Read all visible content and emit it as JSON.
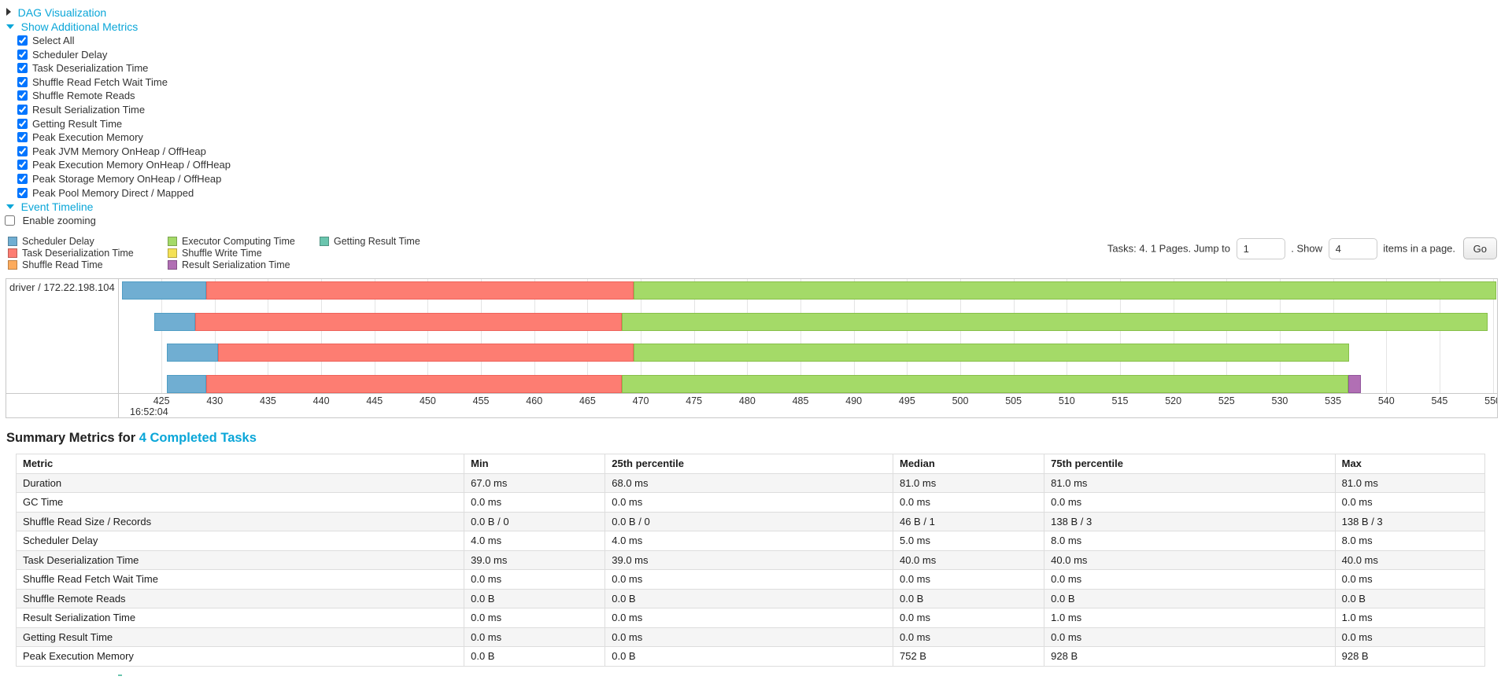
{
  "controls": {
    "dag_label": "DAG Visualization",
    "metrics_label": "Show Additional Metrics",
    "checkboxes": [
      {
        "label": "Select All",
        "checked": true
      },
      {
        "label": "Scheduler Delay",
        "checked": true
      },
      {
        "label": "Task Deserialization Time",
        "checked": true
      },
      {
        "label": "Shuffle Read Fetch Wait Time",
        "checked": true
      },
      {
        "label": "Shuffle Remote Reads",
        "checked": true
      },
      {
        "label": "Result Serialization Time",
        "checked": true
      },
      {
        "label": "Getting Result Time",
        "checked": true
      },
      {
        "label": "Peak Execution Memory",
        "checked": true
      },
      {
        "label": "Peak JVM Memory OnHeap / OffHeap",
        "checked": true
      },
      {
        "label": "Peak Execution Memory OnHeap / OffHeap",
        "checked": true
      },
      {
        "label": "Peak Storage Memory OnHeap / OffHeap",
        "checked": true
      },
      {
        "label": "Peak Pool Memory Direct / Mapped",
        "checked": true
      }
    ],
    "event_timeline_label": "Event Timeline",
    "enable_zooming": {
      "label": "Enable zooming",
      "checked": false
    }
  },
  "legend": {
    "columns": [
      [
        {
          "name": "scheduler-delay",
          "label": "Scheduler Delay",
          "color": "#70aed2"
        },
        {
          "name": "task-deserialization-time",
          "label": "Task Deserialization Time",
          "color": "#fd7d72"
        },
        {
          "name": "shuffle-read-time",
          "label": "Shuffle Read Time",
          "color": "#fdab5d"
        }
      ],
      [
        {
          "name": "executor-computing-time",
          "label": "Executor Computing Time",
          "color": "#a4da68"
        },
        {
          "name": "shuffle-write-time",
          "label": "Shuffle Write Time",
          "color": "#f4e156"
        },
        {
          "name": "result-serialization-time",
          "label": "Result Serialization Time",
          "color": "#b16fb4"
        }
      ],
      [
        {
          "name": "getting-result-time",
          "label": "Getting Result Time",
          "color": "#6ac5ae"
        }
      ]
    ]
  },
  "pagination": {
    "summary_text": "Tasks: 4. 1 Pages. Jump to",
    "jump_value": "1",
    "show_label": ". Show",
    "show_value": "4",
    "items_label": "items in a page.",
    "go_label": "Go"
  },
  "chart_data": {
    "type": "timeline-gantt",
    "title": "Event Timeline",
    "row_label": "driver / 172.22.198.104",
    "x_axis": {
      "unit": "ms within second",
      "time_of_day_label": "16:52:04",
      "time_label_at_tick": 425,
      "tick_start": 425,
      "tick_end": 550,
      "tick_step": 5,
      "domain": [
        421.0,
        550.4
      ],
      "grid": true
    },
    "colors": {
      "scheduler-delay": {
        "fill": "#70aed2",
        "edge": "#4f9dc4"
      },
      "task-deserialization": {
        "fill": "#fd7d72",
        "edge": "#ee625a"
      },
      "executor-computing": {
        "fill": "#a4da68",
        "edge": "#87bf49"
      },
      "result-serialization": {
        "fill": "#b16fb4",
        "edge": "#92549c"
      }
    },
    "tasks": [
      {
        "row": 1,
        "segments": [
          {
            "name": "scheduler-delay",
            "start": 421.3,
            "end": 429.2
          },
          {
            "name": "task-deserialization",
            "start": 429.2,
            "end": 469.3
          },
          {
            "name": "executor-computing",
            "start": 469.3,
            "end": 550.3
          }
        ]
      },
      {
        "row": 2,
        "segments": [
          {
            "name": "scheduler-delay",
            "start": 424.3,
            "end": 428.2
          },
          {
            "name": "task-deserialization",
            "start": 428.2,
            "end": 468.2
          },
          {
            "name": "executor-computing",
            "start": 468.2,
            "end": 549.5
          }
        ]
      },
      {
        "row": 3,
        "segments": [
          {
            "name": "scheduler-delay",
            "start": 425.5,
            "end": 430.3
          },
          {
            "name": "task-deserialization",
            "start": 430.3,
            "end": 469.3
          },
          {
            "name": "executor-computing",
            "start": 469.3,
            "end": 536.5
          }
        ]
      },
      {
        "row": 4,
        "segments": [
          {
            "name": "scheduler-delay",
            "start": 425.5,
            "end": 429.2
          },
          {
            "name": "task-deserialization",
            "start": 429.2,
            "end": 468.2
          },
          {
            "name": "executor-computing",
            "start": 468.2,
            "end": 536.4
          },
          {
            "name": "result-serialization",
            "start": 536.4,
            "end": 537.6
          }
        ]
      }
    ]
  },
  "summary": {
    "title_prefix": "Summary Metrics for ",
    "title_link": "4 Completed Tasks",
    "table": {
      "headers": [
        "Metric",
        "Min",
        "25th percentile",
        "Median",
        "75th percentile",
        "Max"
      ],
      "rows": [
        {
          "metric": "Duration",
          "values": [
            "67.0 ms",
            "68.0 ms",
            "81.0 ms",
            "81.0 ms",
            "81.0 ms"
          ]
        },
        {
          "metric": "GC Time",
          "values": [
            "0.0 ms",
            "0.0 ms",
            "0.0 ms",
            "0.0 ms",
            "0.0 ms"
          ]
        },
        {
          "metric": "Shuffle Read Size / Records",
          "values": [
            "0.0 B / 0",
            "0.0 B / 0",
            "46 B / 1",
            "138 B / 3",
            "138 B / 3"
          ]
        },
        {
          "metric": "Scheduler Delay",
          "values": [
            "4.0 ms",
            "4.0 ms",
            "5.0 ms",
            "8.0 ms",
            "8.0 ms"
          ]
        },
        {
          "metric": "Task Deserialization Time",
          "values": [
            "39.0 ms",
            "39.0 ms",
            "40.0 ms",
            "40.0 ms",
            "40.0 ms"
          ]
        },
        {
          "metric": "Shuffle Read Fetch Wait Time",
          "values": [
            "0.0 ms",
            "0.0 ms",
            "0.0 ms",
            "0.0 ms",
            "0.0 ms"
          ]
        },
        {
          "metric": "Shuffle Remote Reads",
          "values": [
            "0.0 B",
            "0.0 B",
            "0.0 B",
            "0.0 B",
            "0.0 B"
          ]
        },
        {
          "metric": "Result Serialization Time",
          "values": [
            "0.0 ms",
            "0.0 ms",
            "0.0 ms",
            "1.0 ms",
            "1.0 ms"
          ]
        },
        {
          "metric": "Getting Result Time",
          "values": [
            "0.0 ms",
            "0.0 ms",
            "0.0 ms",
            "0.0 ms",
            "0.0 ms"
          ]
        },
        {
          "metric": "Peak Execution Memory",
          "values": [
            "0.0 B",
            "0.0 B",
            "752 B",
            "928 B",
            "928 B"
          ]
        }
      ]
    }
  }
}
